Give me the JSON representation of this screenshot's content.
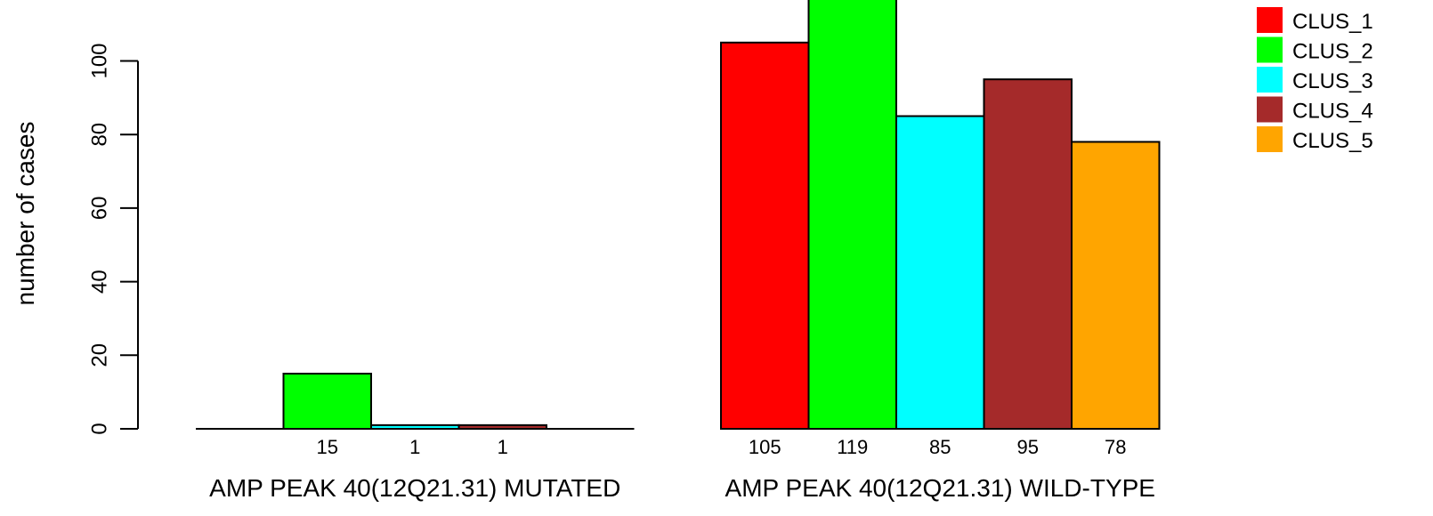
{
  "chart_data": {
    "type": "bar",
    "ylabel": "number of cases",
    "ylim": [
      0,
      120
    ],
    "yticks": [
      0,
      20,
      40,
      60,
      80,
      100
    ],
    "groups": [
      {
        "label": "AMP PEAK 40(12Q21.31) MUTATED",
        "values": [
          0,
          15,
          1,
          1,
          0
        ],
        "value_labels": [
          "",
          "15",
          "1",
          "1",
          ""
        ]
      },
      {
        "label": "AMP PEAK 40(12Q21.31) WILD-TYPE",
        "values": [
          105,
          119,
          85,
          95,
          78
        ],
        "value_labels": [
          "105",
          "119",
          "85",
          "95",
          "78"
        ]
      }
    ],
    "series": [
      {
        "name": "CLUS_1",
        "color": "#ff0000"
      },
      {
        "name": "CLUS_2",
        "color": "#00ff00"
      },
      {
        "name": "CLUS_3",
        "color": "#00ffff"
      },
      {
        "name": "CLUS_4",
        "color": "#a52a2a"
      },
      {
        "name": "CLUS_5",
        "color": "#ffa500"
      }
    ],
    "legend_position": "top-right",
    "grid": false
  }
}
